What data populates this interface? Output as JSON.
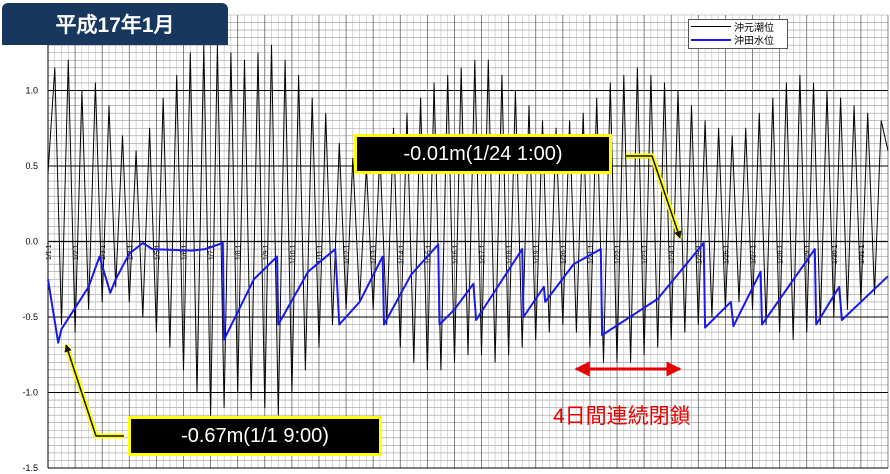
{
  "title": "平成17年1月",
  "legend": {
    "items": [
      {
        "label": "沖元潮位"
      },
      {
        "label": "沖田水位"
      }
    ]
  },
  "callouts": {
    "max": {
      "text": "-0.01m(1/24 1:00)"
    },
    "min": {
      "text": "-0.67m(1/1 9:00)"
    }
  },
  "annotation": {
    "text": "4日間連続閉鎖"
  },
  "colors": {
    "tide": "#000000",
    "water": "#1a1ae6",
    "title_bg": "#17375e",
    "callout_border": "#ffff00",
    "arrow": "#e60000"
  },
  "chart_data": {
    "type": "line",
    "x_unit": "days (January)",
    "xlim": [
      1,
      32
    ],
    "ylim": [
      -1.5,
      1.5
    ],
    "yticks": [
      1.0,
      0.5,
      0.0,
      -0.5,
      -1.0,
      -1.5
    ],
    "ytick_labels": [
      "1.0",
      "0.5",
      "0.0",
      "-0.5",
      "-1.0",
      "-1.5"
    ],
    "xtick_labels": [
      "1/1 1",
      "1/2 1",
      "1/3 1",
      "1/4 1",
      "1/5 1",
      "1/6 1",
      "1/7 1",
      "1/8 1",
      "1/9 1",
      "1/10 1",
      "1/11 1",
      "1/12 1",
      "1/13 1",
      "1/14 1",
      "1/15 1",
      "1/16 1",
      "1/17 1",
      "1/18 1",
      "1/19 1",
      "1/20 1",
      "1/21 1",
      "1/22 1",
      "1/23 1",
      "1/24 1",
      "1/25 1",
      "1/26 1",
      "1/27 1",
      "1/28 1",
      "1/29 1",
      "1/30 1",
      "1/31 1"
    ],
    "series": [
      {
        "name": "沖元潮位",
        "color": "#000000",
        "x": [
          1.0,
          1.25,
          1.5,
          1.75,
          2.0,
          2.25,
          2.5,
          2.75,
          3.0,
          3.25,
          3.5,
          3.75,
          4.0,
          4.25,
          4.5,
          4.75,
          5.0,
          5.25,
          5.5,
          5.75,
          6.0,
          6.25,
          6.5,
          6.75,
          7.0,
          7.25,
          7.5,
          7.75,
          8.0,
          8.25,
          8.5,
          8.75,
          9.0,
          9.25,
          9.5,
          9.75,
          10.0,
          10.25,
          10.5,
          10.75,
          11.0,
          11.25,
          11.5,
          11.75,
          12.0,
          12.25,
          12.5,
          12.75,
          13.0,
          13.25,
          13.5,
          13.75,
          14.0,
          14.25,
          14.5,
          14.75,
          15.0,
          15.25,
          15.5,
          15.75,
          16.0,
          16.25,
          16.5,
          16.75,
          17.0,
          17.25,
          17.5,
          17.75,
          18.0,
          18.25,
          18.5,
          18.75,
          19.0,
          19.25,
          19.5,
          19.75,
          20.0,
          20.25,
          20.5,
          20.75,
          21.0,
          21.25,
          21.5,
          21.75,
          22.0,
          22.25,
          22.5,
          22.75,
          23.0,
          23.25,
          23.5,
          23.75,
          24.0,
          24.25,
          24.5,
          24.75,
          25.0,
          25.25,
          25.5,
          25.75,
          26.0,
          26.25,
          26.5,
          26.75,
          27.0,
          27.25,
          27.5,
          27.75,
          28.0,
          28.25,
          28.5,
          28.75,
          29.0,
          29.25,
          29.5,
          29.75,
          30.0,
          30.25,
          30.5,
          30.75,
          31.0,
          31.25,
          31.5,
          31.75,
          32.0
        ],
        "values": [
          0.45,
          1.15,
          -0.55,
          1.2,
          -0.6,
          1.0,
          -0.45,
          1.05,
          -0.4,
          0.9,
          -0.3,
          0.7,
          -0.4,
          0.6,
          -0.5,
          0.75,
          -0.6,
          0.95,
          -0.7,
          1.1,
          -0.85,
          1.25,
          -1.0,
          1.3,
          -1.15,
          1.3,
          -1.1,
          1.25,
          -1.0,
          1.2,
          -1.05,
          1.25,
          -1.1,
          1.3,
          -1.15,
          1.2,
          -1.0,
          1.1,
          -0.85,
          0.95,
          -0.7,
          0.85,
          -0.55,
          0.65,
          -0.45,
          0.55,
          -0.4,
          0.5,
          -0.45,
          0.6,
          -0.55,
          0.75,
          -0.7,
          0.85,
          -0.8,
          0.95,
          -0.85,
          1.05,
          -0.85,
          1.1,
          -0.8,
          1.15,
          -0.75,
          1.2,
          -0.75,
          1.2,
          -0.8,
          1.1,
          -0.75,
          1.0,
          -0.7,
          0.9,
          -0.65,
          0.8,
          -0.6,
          0.75,
          -0.55,
          0.8,
          -0.6,
          0.85,
          -0.7,
          0.95,
          -0.8,
          1.05,
          -0.8,
          1.1,
          -0.8,
          1.15,
          -0.75,
          1.1,
          -0.7,
          1.05,
          -0.65,
          1.0,
          -0.6,
          0.9,
          -0.55,
          0.8,
          -0.5,
          0.75,
          -0.45,
          0.7,
          -0.4,
          0.75,
          -0.45,
          0.85,
          -0.55,
          0.95,
          -0.6,
          1.05,
          -0.65,
          1.1,
          -0.6,
          1.05,
          -0.55,
          1.0,
          -0.5,
          0.95,
          -0.45,
          0.9,
          -0.4,
          0.85,
          -0.35,
          0.8,
          0.6
        ]
      },
      {
        "name": "沖田水位",
        "color": "#1a1ae6",
        "x": [
          1.0,
          1.375,
          1.5,
          2.5,
          2.9,
          3.3,
          3.5,
          4.0,
          4.5,
          4.85,
          6.3,
          6.8,
          7.45,
          7.5,
          8.6,
          9.45,
          9.5,
          10.6,
          11.6,
          11.75,
          12.5,
          13.35,
          13.4,
          14.4,
          15.4,
          15.45,
          16.0,
          16.7,
          16.8,
          18.5,
          18.55,
          19.3,
          19.35,
          20.4,
          21.4,
          21.45,
          23.5,
          25.2,
          25.25,
          26.2,
          26.3,
          27.3,
          27.35,
          29.3,
          29.35,
          30.2,
          30.3,
          32.0
        ],
        "values": [
          -0.25,
          -0.67,
          -0.58,
          -0.3,
          -0.1,
          -0.34,
          -0.25,
          -0.08,
          -0.01,
          -0.05,
          -0.06,
          -0.05,
          -0.01,
          -0.65,
          -0.25,
          -0.1,
          -0.55,
          -0.2,
          -0.05,
          -0.55,
          -0.4,
          -0.1,
          -0.55,
          -0.22,
          -0.02,
          -0.55,
          -0.45,
          -0.28,
          -0.52,
          -0.05,
          -0.5,
          -0.3,
          -0.4,
          -0.15,
          -0.05,
          -0.62,
          -0.38,
          -0.01,
          -0.57,
          -0.4,
          -0.56,
          -0.2,
          -0.55,
          -0.05,
          -0.55,
          -0.3,
          -0.52,
          -0.23
        ]
      }
    ]
  }
}
